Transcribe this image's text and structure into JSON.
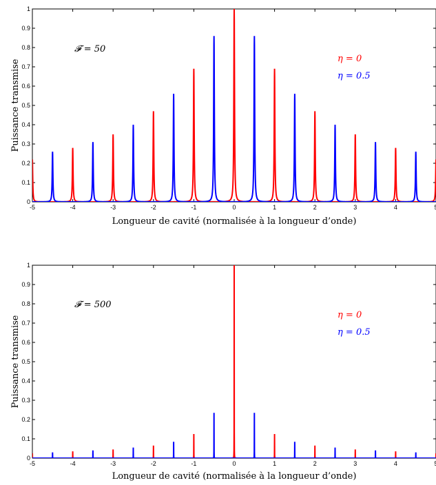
{
  "chart_data": [
    {
      "type": "line",
      "annotation": "𝓕 = 50",
      "finesse": 50,
      "xlabel": "Longueur de cavité (normalisée à la longueur d’onde)",
      "ylabel": "Puissance transmise",
      "xlim": [
        -5,
        5
      ],
      "ylim": [
        0,
        1
      ],
      "xticks": [
        "-5",
        "-4",
        "-3",
        "-2",
        "-1",
        "0",
        "1",
        "2",
        "3",
        "4",
        "5"
      ],
      "yticks": [
        "0",
        "0.1",
        "0.2",
        "0.3",
        "0.4",
        "0.5",
        "0.6",
        "0.7",
        "0.8",
        "0.9",
        "1"
      ],
      "legend": [
        "η = 0",
        "η = 0.5"
      ],
      "grid": false,
      "series": [
        {
          "name": "η = 0",
          "color": "#ff0000",
          "peaks": [
            {
              "x": -5,
              "y": 0.22
            },
            {
              "x": -4,
              "y": 0.28
            },
            {
              "x": -3,
              "y": 0.35
            },
            {
              "x": -2,
              "y": 0.47
            },
            {
              "x": -1,
              "y": 0.69
            },
            {
              "x": 0,
              "y": 1.0
            },
            {
              "x": 1,
              "y": 0.69
            },
            {
              "x": 2,
              "y": 0.47
            },
            {
              "x": 3,
              "y": 0.35
            },
            {
              "x": 4,
              "y": 0.28
            },
            {
              "x": 5,
              "y": 0.22
            }
          ]
        },
        {
          "name": "η = 0.5",
          "color": "#0000ff",
          "peaks": [
            {
              "x": -4.5,
              "y": 0.26
            },
            {
              "x": -3.5,
              "y": 0.31
            },
            {
              "x": -2.5,
              "y": 0.4
            },
            {
              "x": -1.5,
              "y": 0.56
            },
            {
              "x": -0.5,
              "y": 0.86
            },
            {
              "x": 0.5,
              "y": 0.86
            },
            {
              "x": 1.5,
              "y": 0.56
            },
            {
              "x": 2.5,
              "y": 0.4
            },
            {
              "x": 3.5,
              "y": 0.31
            },
            {
              "x": 4.5,
              "y": 0.26
            }
          ]
        }
      ]
    },
    {
      "type": "line",
      "annotation": "𝓕 = 500",
      "finesse": 500,
      "xlabel": "Longueur de cavité (normalisée à la longueur d’onde)",
      "ylabel": "Puissance transmise",
      "xlim": [
        -5,
        5
      ],
      "ylim": [
        0,
        1
      ],
      "xticks": [
        "-5",
        "-4",
        "-3",
        "-2",
        "-1",
        "0",
        "1",
        "2",
        "3",
        "4",
        "5"
      ],
      "yticks": [
        "0",
        "0.1",
        "0.2",
        "0.3",
        "0.4",
        "0.5",
        "0.6",
        "0.7",
        "0.8",
        "0.9",
        "1"
      ],
      "legend": [
        "η = 0",
        "η = 0.5"
      ],
      "grid": false,
      "series": [
        {
          "name": "η = 0",
          "color": "#ff0000",
          "peaks": [
            {
              "x": -5,
              "y": 0.025
            },
            {
              "x": -4,
              "y": 0.035
            },
            {
              "x": -3,
              "y": 0.045
            },
            {
              "x": -2,
              "y": 0.065
            },
            {
              "x": -1,
              "y": 0.125
            },
            {
              "x": 0,
              "y": 1.0
            },
            {
              "x": 1,
              "y": 0.125
            },
            {
              "x": 2,
              "y": 0.065
            },
            {
              "x": 3,
              "y": 0.045
            },
            {
              "x": 4,
              "y": 0.035
            },
            {
              "x": 5,
              "y": 0.025
            }
          ]
        },
        {
          "name": "η = 0.5",
          "color": "#0000ff",
          "peaks": [
            {
              "x": -4.5,
              "y": 0.03
            },
            {
              "x": -3.5,
              "y": 0.04
            },
            {
              "x": -2.5,
              "y": 0.055
            },
            {
              "x": -1.5,
              "y": 0.085
            },
            {
              "x": -0.5,
              "y": 0.235
            },
            {
              "x": 0.5,
              "y": 0.235
            },
            {
              "x": 1.5,
              "y": 0.085
            },
            {
              "x": 2.5,
              "y": 0.055
            },
            {
              "x": 3.5,
              "y": 0.04
            },
            {
              "x": 4.5,
              "y": 0.03
            }
          ]
        }
      ]
    }
  ]
}
